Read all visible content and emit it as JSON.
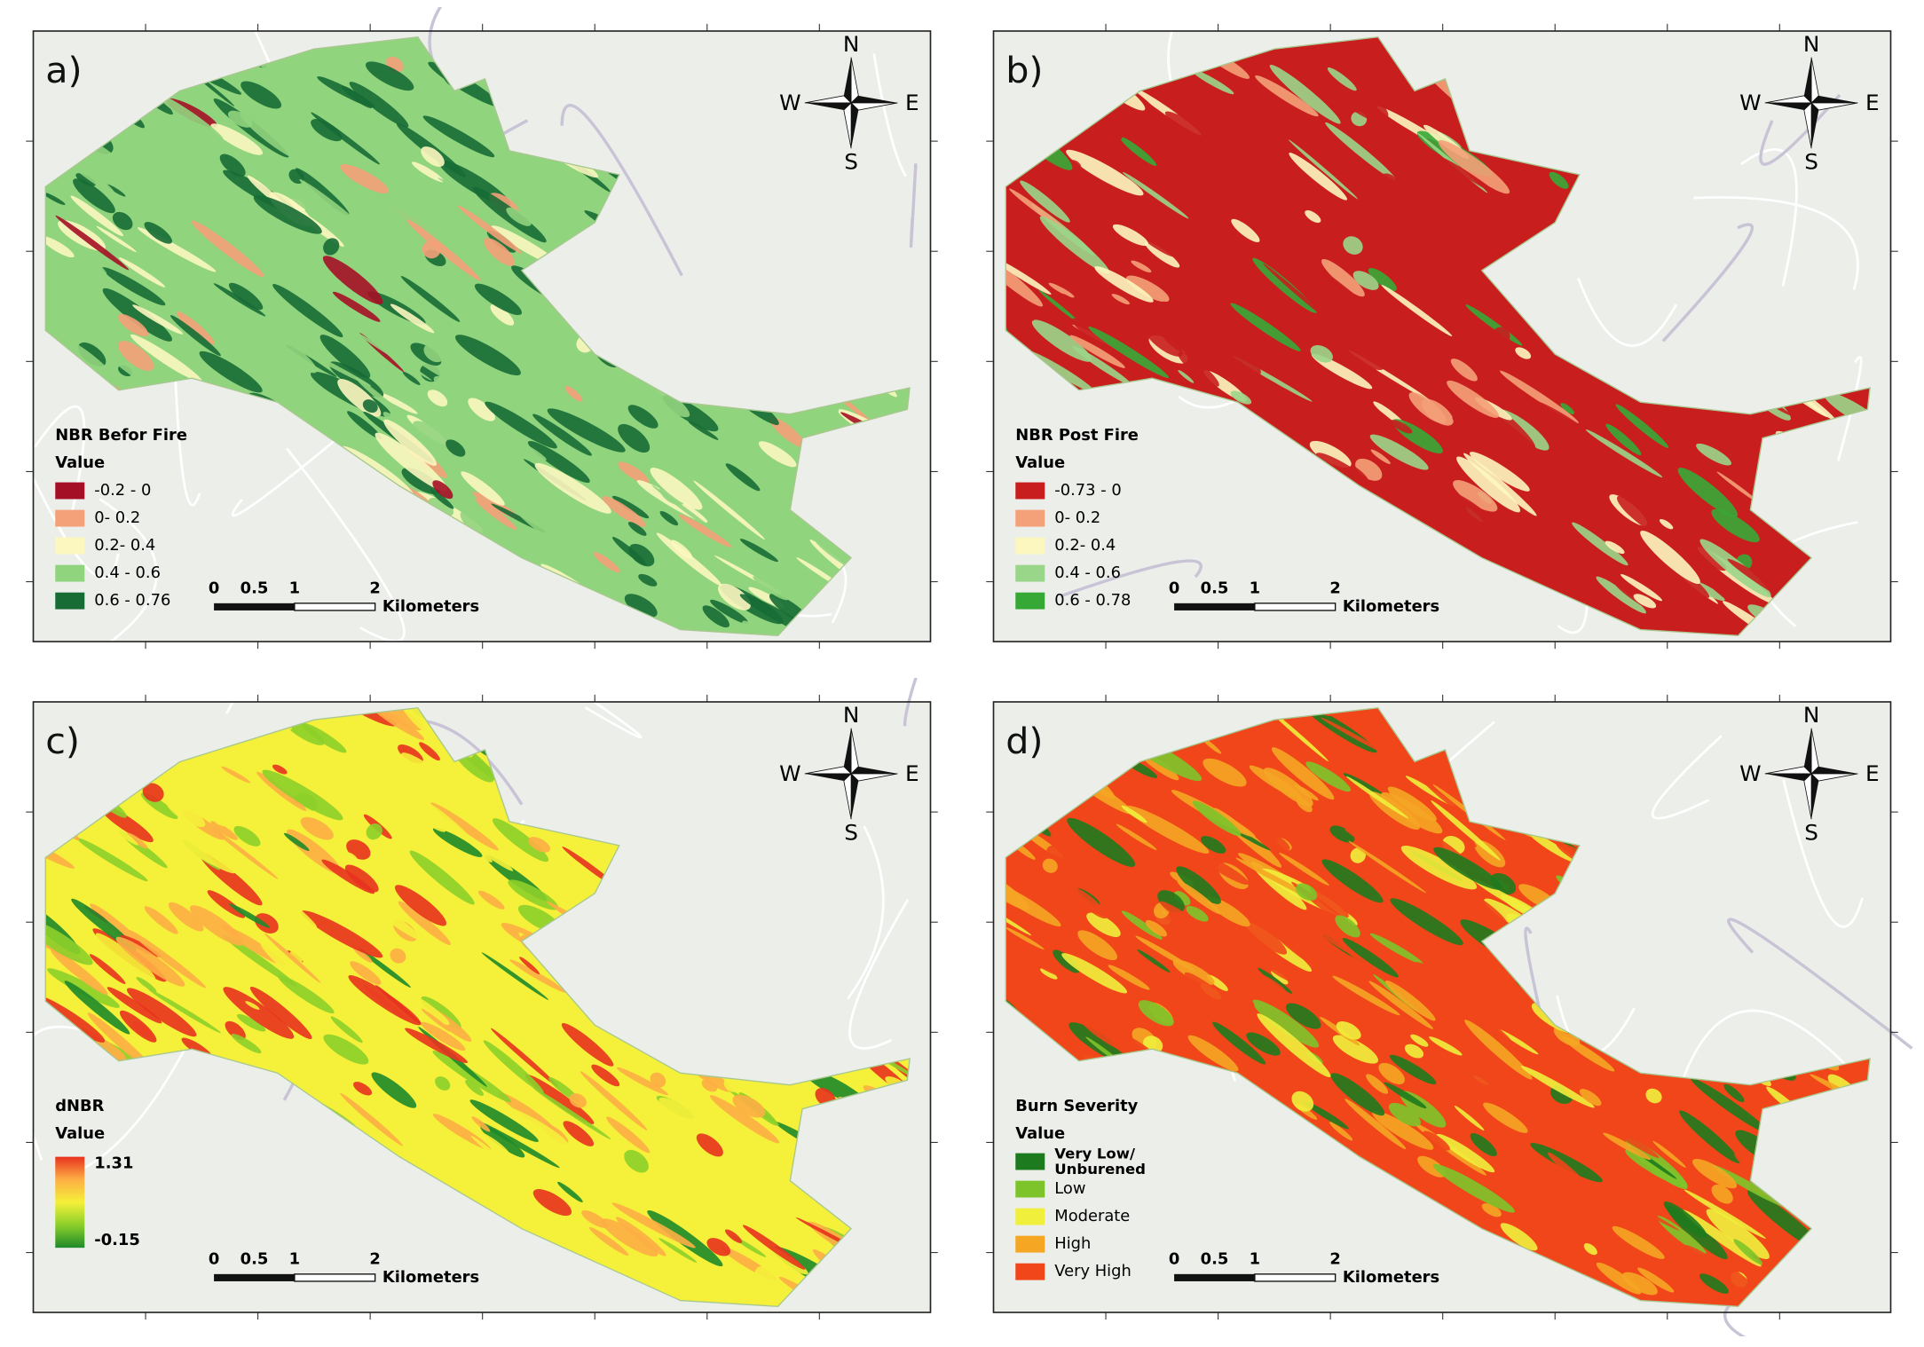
{
  "panels": [
    {
      "label": "a)",
      "compass": {
        "n": "N",
        "e": "E",
        "s": "S",
        "w": "W"
      },
      "legend": {
        "title": "NBR Befor Fire",
        "subtitle": "Value",
        "items": [
          {
            "label": "-0.2 - 0",
            "color": "#a50f26"
          },
          {
            "label": "0- 0.2",
            "color": "#f4a078"
          },
          {
            "label": "0.2- 0.4",
            "color": "#fcf7bf"
          },
          {
            "label": "0.4 - 0.6",
            "color": "#91d47e"
          },
          {
            "label": "0.6 - 0.76",
            "color": "#176b35"
          }
        ]
      },
      "scale": {
        "ticks": [
          "0",
          "0.5",
          "1",
          "2"
        ],
        "unit": "Kilometers"
      }
    },
    {
      "label": "b)",
      "compass": {
        "n": "N",
        "e": "E",
        "s": "S",
        "w": "W"
      },
      "legend": {
        "title": "NBR Post Fire",
        "subtitle": "Value",
        "items": [
          {
            "label": "-0.73 - 0",
            "color": "#c81e1e"
          },
          {
            "label": "0- 0.2",
            "color": "#f4a078"
          },
          {
            "label": "0.2- 0.4",
            "color": "#fcf7bf"
          },
          {
            "label": "0.4 - 0.6",
            "color": "#9ad68a"
          },
          {
            "label": "0.6 - 0.78",
            "color": "#36a836"
          }
        ]
      },
      "scale": {
        "ticks": [
          "0",
          "0.5",
          "1",
          "2"
        ],
        "unit": "Kilometers"
      }
    },
    {
      "label": "c)",
      "compass": {
        "n": "N",
        "e": "E",
        "s": "S",
        "w": "W"
      },
      "legend": {
        "title": "dNBR",
        "subtitle": "Value",
        "high": "1.31",
        "low": "-0.15",
        "gradient": [
          "#e8321e",
          "#fdae45",
          "#f5f03a",
          "#8ccf2a",
          "#1e8a2a"
        ]
      },
      "scale": {
        "ticks": [
          "0",
          "0.5",
          "1",
          "2"
        ],
        "unit": "Kilometers"
      }
    },
    {
      "label": "d)",
      "compass": {
        "n": "N",
        "e": "E",
        "s": "S",
        "w": "W"
      },
      "legend": {
        "title": "Burn Severity",
        "subtitle": "Value",
        "items": [
          {
            "label": [
              "Very Low/",
              "Unburened"
            ],
            "color": "#1e7a1e"
          },
          {
            "label": "Low",
            "color": "#7dc42a"
          },
          {
            "label": "Moderate",
            "color": "#f0f03c"
          },
          {
            "label": "High",
            "color": "#f5a623"
          },
          {
            "label": "Very High",
            "color": "#f0461a"
          }
        ]
      },
      "scale": {
        "ticks": [
          "0",
          "0.5",
          "1",
          "2"
        ],
        "unit": "Kilometers"
      }
    }
  ]
}
